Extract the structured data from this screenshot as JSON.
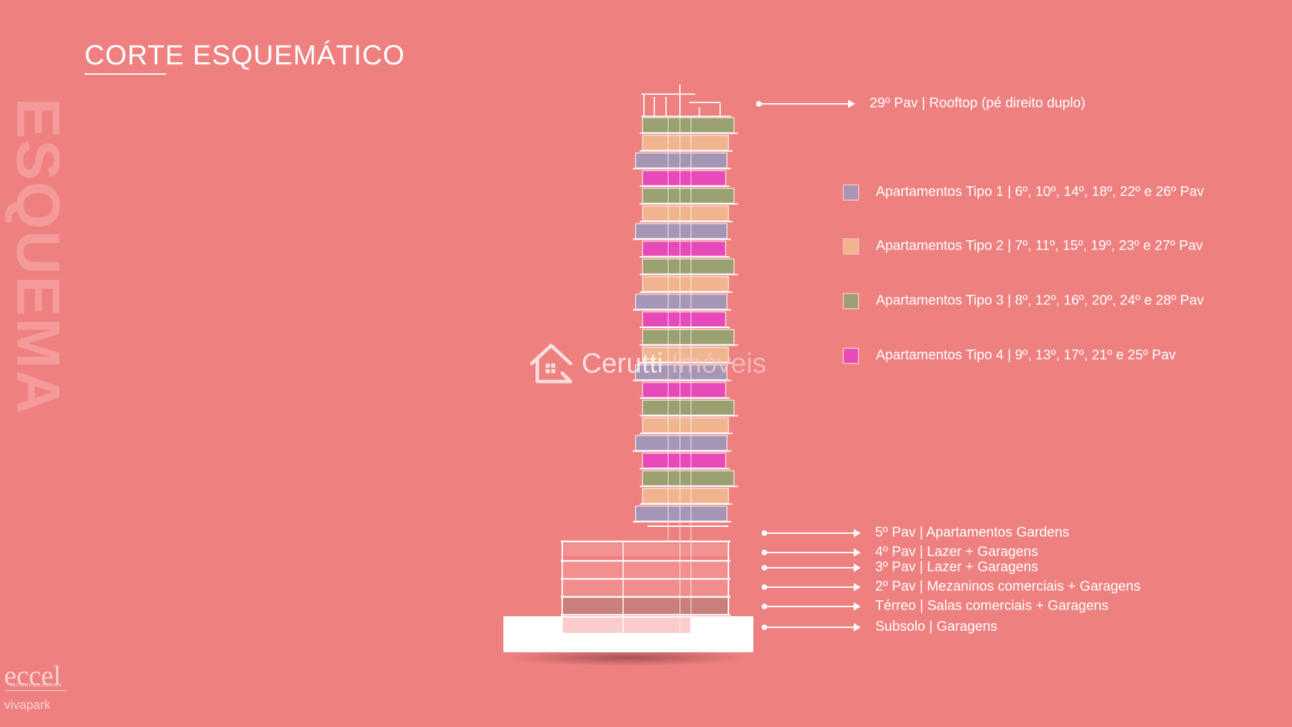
{
  "title": "CORTE ESQUEMÁTICO",
  "side_word": "ESQUEMA",
  "colors": {
    "background": "#ef8080",
    "tipo1": "#a696b6",
    "tipo2": "#f0b48e",
    "tipo3": "#9aa070",
    "tipo4": "#e74ab8",
    "podium": "#c9807c",
    "white": "#ffffff"
  },
  "top_label": "29º Pav | Rooftop (pé direito duplo)",
  "legend": [
    {
      "label": "Apartamentos Tipo 1 | 6º, 10º, 14º, 18º, 22º e 26º Pav",
      "color": "#a696b6"
    },
    {
      "label": "Apartamentos Tipo 2 | 7º, 11º, 15º, 19º, 23º e 27º Pav",
      "color": "#f0b48e"
    },
    {
      "label": "Apartamentos Tipo 3 | 8º, 12º, 16º, 20º, 24º e 28º Pav",
      "color": "#9aa070"
    },
    {
      "label": "Apartamentos Tipo 4 | 9º, 13º, 17º, 21º e 25º Pav",
      "color": "#e74ab8"
    }
  ],
  "lower_labels": [
    "5º Pav | Apartamentos Gardens",
    "4º Pav | Lazer + Garagens",
    "3º Pav | Lazer + Garagens",
    "2º Pav | Mezaninos comerciais + Garagens",
    "Térreo | Salas comerciais + Garagens",
    "Subsolo | Garagens"
  ],
  "watermark": {
    "brand": "Cerutti",
    "suffix": "Imóveis",
    "icon": "house-icon"
  },
  "brands": {
    "primary": "eccel",
    "primary_sub": "INCORPORADORA",
    "secondary": "vivapark"
  }
}
